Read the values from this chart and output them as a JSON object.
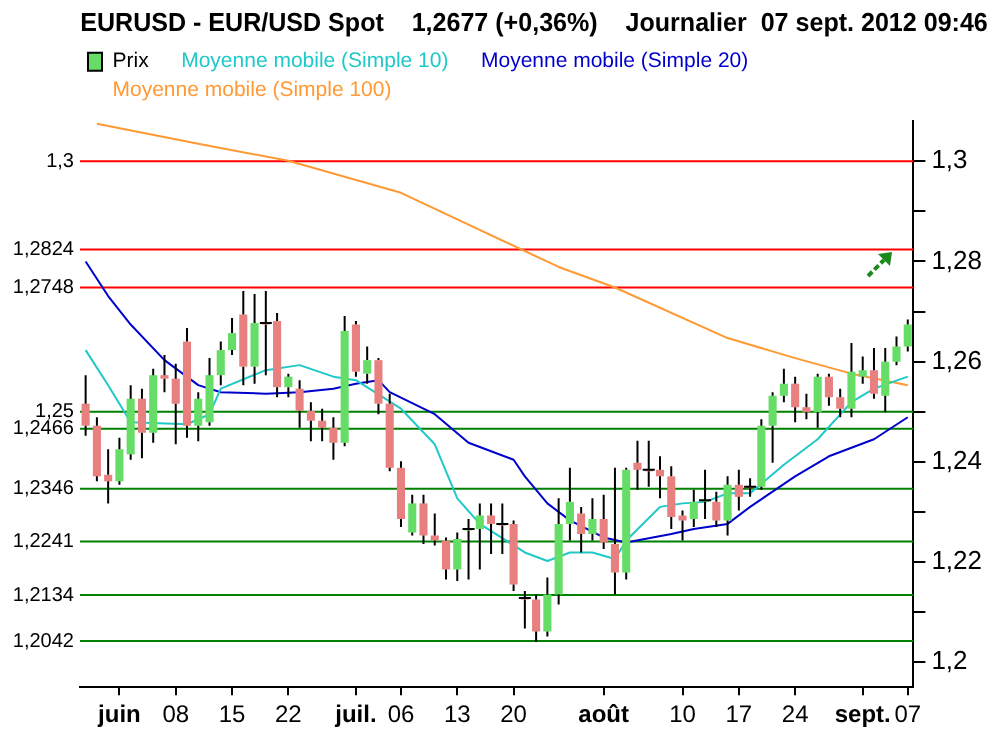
{
  "chart_data": {
    "type": "candlestick",
    "title": "EURUSD - EUR/USD Spot    1,2677 (+0,36%)    Journalier  07 sept. 2012 09:46",
    "categories": [
      null,
      null,
      null,
      "juin",
      null,
      null,
      null,
      null,
      "08",
      null,
      null,
      null,
      null,
      "15",
      null,
      null,
      null,
      null,
      "22",
      null,
      null,
      null,
      null,
      null,
      "juil.",
      null,
      null,
      null,
      "06",
      null,
      null,
      null,
      null,
      "13",
      null,
      null,
      null,
      null,
      "20",
      null,
      null,
      null,
      null,
      null,
      null,
      null,
      "août",
      null,
      null,
      null,
      null,
      null,
      null,
      "10",
      null,
      null,
      null,
      null,
      "17",
      null,
      null,
      null,
      null,
      "24",
      null,
      null,
      null,
      null,
      null,
      "sept.",
      null,
      null,
      null,
      "07"
    ],
    "series": [
      {
        "name": "Prix",
        "type": "candlestick",
        "color": "#000000",
        "ohlc": [
          [
            1.2516,
            1.2573,
            1.2452,
            1.2472
          ],
          [
            1.2472,
            1.2489,
            1.2361,
            1.2371
          ],
          [
            1.2374,
            1.2425,
            1.2317,
            1.2361
          ],
          [
            1.2361,
            1.2448,
            1.2354,
            1.2425
          ],
          [
            1.2415,
            1.2553,
            1.2404,
            1.2526
          ],
          [
            1.2526,
            1.2546,
            1.2407,
            1.2458
          ],
          [
            1.2458,
            1.2586,
            1.2438,
            1.2573
          ],
          [
            1.2573,
            1.2613,
            1.2539,
            1.2566
          ],
          [
            1.2566,
            1.2596,
            1.2435,
            1.2516
          ],
          [
            1.264,
            1.2667,
            1.2448,
            1.2472
          ],
          [
            1.2472,
            1.2539,
            1.2441,
            1.2526
          ],
          [
            1.2479,
            1.2607,
            1.2472,
            1.2573
          ],
          [
            1.2573,
            1.264,
            1.2553,
            1.2623
          ],
          [
            1.2623,
            1.2687,
            1.2613,
            1.2657
          ],
          [
            1.2694,
            1.2741,
            1.2553,
            1.259
          ],
          [
            1.259,
            1.2735,
            1.2556,
            1.2677
          ],
          [
            1.2677,
            1.2741,
            1.2573,
            1.2674
          ],
          [
            1.2681,
            1.2697,
            1.2529,
            1.2549
          ],
          [
            1.2549,
            1.2576,
            1.2529,
            1.257
          ],
          [
            1.2546,
            1.2563,
            1.2468,
            1.2502
          ],
          [
            1.2502,
            1.2519,
            1.2441,
            1.2482
          ],
          [
            1.2482,
            1.2506,
            1.2441,
            1.2468
          ],
          [
            1.2468,
            1.2489,
            1.2404,
            1.2438
          ],
          [
            1.2438,
            1.2691,
            1.2431,
            1.2661
          ],
          [
            1.2674,
            1.2681,
            1.257,
            1.258
          ],
          [
            1.2576,
            1.263,
            1.2556,
            1.2603
          ],
          [
            1.2603,
            1.2607,
            1.2495,
            1.2516
          ],
          [
            1.2516,
            1.2536,
            1.2381,
            1.2388
          ],
          [
            1.2388,
            1.2401,
            1.227,
            1.2286
          ],
          [
            1.2259,
            1.2334,
            1.2253,
            1.2317
          ],
          [
            1.2317,
            1.2334,
            1.2236,
            1.2253
          ],
          [
            1.2253,
            1.2297,
            1.2233,
            1.2243
          ],
          [
            1.2243,
            1.2249,
            1.2165,
            1.2185
          ],
          [
            1.2185,
            1.2259,
            1.2162,
            1.2246
          ],
          [
            1.2263,
            1.2286,
            1.2165,
            1.2266
          ],
          [
            1.2266,
            1.2317,
            1.2185,
            1.2293
          ],
          [
            1.2293,
            1.2317,
            1.2216,
            1.2276
          ],
          [
            1.2276,
            1.2317,
            1.2216,
            1.2273
          ],
          [
            1.2276,
            1.2283,
            1.2142,
            1.2155
          ],
          [
            1.2128,
            1.2142,
            1.2067,
            1.2125
          ],
          [
            1.2125,
            1.2135,
            1.204,
            1.2061
          ],
          [
            1.2061,
            1.2169,
            1.2051,
            1.2135
          ],
          [
            1.2135,
            1.2327,
            1.2115,
            1.2276
          ],
          [
            1.2276,
            1.2388,
            1.2243,
            1.232
          ],
          [
            1.2297,
            1.231,
            1.2219,
            1.2256
          ],
          [
            1.2256,
            1.2327,
            1.2243,
            1.2286
          ],
          [
            1.2286,
            1.2334,
            1.2226,
            1.2239
          ],
          [
            1.2236,
            1.2388,
            1.2135,
            1.2179
          ],
          [
            1.2179,
            1.2388,
            1.2165,
            1.2384
          ],
          [
            1.2398,
            1.2442,
            1.2344,
            1.2384
          ],
          [
            1.2384,
            1.2442,
            1.235,
            1.2381
          ],
          [
            1.2384,
            1.2411,
            1.2327,
            1.2371
          ],
          [
            1.2371,
            1.2391,
            1.2266,
            1.229
          ],
          [
            1.2293,
            1.2303,
            1.2243,
            1.2283
          ],
          [
            1.2286,
            1.2344,
            1.227,
            1.232
          ],
          [
            1.232,
            1.2384,
            1.2286,
            1.2323
          ],
          [
            1.232,
            1.234,
            1.227,
            1.2283
          ],
          [
            1.2283,
            1.2371,
            1.2253,
            1.2354
          ],
          [
            1.2354,
            1.2384,
            1.2303,
            1.233
          ],
          [
            1.235,
            1.2367,
            1.233,
            1.2347
          ],
          [
            1.235,
            1.2485,
            1.2344,
            1.2472
          ],
          [
            1.2472,
            1.2539,
            1.2398,
            1.2532
          ],
          [
            1.2532,
            1.2586,
            1.2519,
            1.2556
          ],
          [
            1.2556,
            1.257,
            1.2479,
            1.2509
          ],
          [
            1.2509,
            1.2536,
            1.2485,
            1.2499
          ],
          [
            1.2499,
            1.2576,
            1.2468,
            1.257
          ],
          [
            1.257,
            1.2576,
            1.2512,
            1.2529
          ],
          [
            1.2529,
            1.2546,
            1.2489,
            1.2506
          ],
          [
            1.2506,
            1.2637,
            1.2489,
            1.258
          ],
          [
            1.257,
            1.261,
            1.2556,
            1.2583
          ],
          [
            1.2583,
            1.2627,
            1.2526,
            1.2536
          ],
          [
            1.2532,
            1.2627,
            1.2499,
            1.26
          ],
          [
            1.26,
            1.265,
            1.2593,
            1.263
          ],
          [
            1.263,
            1.2684,
            1.262,
            1.2674
          ]
        ],
        "colors": [
          "#e88080",
          "#e88080",
          "#e88080",
          "#66dd66",
          "#66dd66",
          "#e88080",
          "#66dd66",
          "#e88080",
          "#e88080",
          "#e88080",
          "#66dd66",
          "#66dd66",
          "#66dd66",
          "#66dd66",
          "#e88080",
          "#66dd66",
          "#e88080",
          "#e88080",
          "#66dd66",
          "#e88080",
          "#e88080",
          "#e88080",
          "#e88080",
          "#66dd66",
          "#e88080",
          "#66dd66",
          "#e88080",
          "#e88080",
          "#e88080",
          "#66dd66",
          "#e88080",
          "#e88080",
          "#e88080",
          "#66dd66",
          "#66dd66",
          "#66dd66",
          "#e88080",
          "#e88080",
          "#e88080",
          "#e88080",
          "#e88080",
          "#66dd66",
          "#66dd66",
          "#66dd66",
          "#e88080",
          "#66dd66",
          "#e88080",
          "#e88080",
          "#66dd66",
          "#e88080",
          "#e88080",
          "#e88080",
          "#e88080",
          "#e88080",
          "#66dd66",
          "#66dd66",
          "#e88080",
          "#66dd66",
          "#e88080",
          "#e88080",
          "#66dd66",
          "#66dd66",
          "#66dd66",
          "#e88080",
          "#e88080",
          "#66dd66",
          "#e88080",
          "#e88080",
          "#66dd66",
          "#66dd66",
          "#e88080",
          "#66dd66",
          "#66dd66",
          "#66dd66"
        ]
      },
      {
        "name": "Moyenne mobile (Simple 10)",
        "type": "line",
        "color": "#20c8c8",
        "values": [
          1.2623,
          null,
          1.2553,
          null,
          1.2479,
          null,
          null,
          null,
          null,
          1.2475,
          null,
          1.2495,
          1.2546,
          null,
          null,
          null,
          1.2583,
          null,
          null,
          1.2593,
          null,
          null,
          1.257,
          null,
          1.2563,
          null,
          null,
          null,
          1.2506,
          null,
          null,
          1.2435,
          null,
          1.2327,
          null,
          1.2276,
          null,
          null,
          null,
          1.2219,
          null,
          1.2202,
          null,
          1.2219,
          null,
          1.2219,
          null,
          1.2206,
          1.2243,
          null,
          null,
          1.231,
          null,
          1.2317,
          null,
          1.232,
          null,
          1.2337,
          null,
          1.2337,
          null,
          null,
          1.2394,
          null,
          null,
          1.2445,
          null,
          null,
          1.2519,
          null,
          1.2546,
          null,
          null,
          1.257
        ]
      },
      {
        "name": "Moyenne mobile (Simple 20)",
        "type": "line",
        "color": "#0000cc",
        "values": [
          1.28,
          null,
          1.2731,
          null,
          1.2674,
          null,
          null,
          1.2603,
          null,
          null,
          1.2553,
          null,
          1.2539,
          null,
          null,
          null,
          1.2536,
          null,
          null,
          1.2539,
          null,
          null,
          1.2546,
          null,
          1.2556,
          null,
          1.2563,
          1.2539,
          null,
          null,
          null,
          1.2495,
          null,
          null,
          1.2438,
          null,
          null,
          null,
          1.2404,
          1.2371,
          null,
          1.2317,
          null,
          1.2283,
          null,
          null,
          1.2249,
          null,
          1.2239,
          null,
          null,
          null,
          1.2256,
          null,
          1.2266,
          null,
          null,
          1.2276,
          null,
          1.231,
          null,
          null,
          null,
          1.2371,
          null,
          null,
          1.2411,
          null,
          null,
          null,
          1.2445,
          null,
          null,
          1.2489
        ]
      },
      {
        "name": "Moyenne mobile (Simple 100)",
        "type": "line",
        "color": "#ff9933",
        "values": [
          null,
          1.3075,
          null,
          null,
          null,
          null,
          null,
          null,
          null,
          null,
          1.3035,
          null,
          null,
          null,
          null,
          null,
          null,
          null,
          1.3001,
          null,
          null,
          null,
          null,
          null,
          null,
          null,
          null,
          null,
          1.2937,
          null,
          null,
          null,
          null,
          null,
          null,
          null,
          null,
          null,
          null,
          null,
          null,
          null,
          1.2789,
          null,
          null,
          null,
          null,
          1.2748,
          null,
          null,
          null,
          null,
          null,
          null,
          null,
          null,
          null,
          1.2647,
          null,
          null,
          null,
          null,
          null,
          1.2607,
          null,
          null,
          null,
          null,
          1.2576,
          null,
          null,
          null,
          null,
          1.2553
        ]
      }
    ],
    "ylim": [
      1.195,
      1.308
    ],
    "yticks": [
      {
        "value": 1.2,
        "label": "1,2"
      },
      {
        "value": 1.21,
        "label": null
      },
      {
        "value": 1.22,
        "label": "1,22"
      },
      {
        "value": 1.23,
        "label": null
      },
      {
        "value": 1.24,
        "label": "1,24"
      },
      {
        "value": 1.25,
        "label": null
      },
      {
        "value": 1.26,
        "label": "1,26"
      },
      {
        "value": 1.27,
        "label": null
      },
      {
        "value": 1.28,
        "label": "1,28"
      },
      {
        "value": 1.29,
        "label": null
      },
      {
        "value": 1.3,
        "label": "1,3"
      }
    ],
    "ref_lines": [
      {
        "axis": "y",
        "value": 1.3,
        "label": "1,3",
        "color": "#ff0000"
      },
      {
        "axis": "y",
        "value": 1.2824,
        "label": "1,2824",
        "color": "#ff0000"
      },
      {
        "axis": "y",
        "value": 1.2748,
        "label": "1,2748",
        "color": "#ff0000"
      },
      {
        "axis": "y",
        "value": 1.25,
        "label": "1,25",
        "color": "#008000"
      },
      {
        "axis": "y",
        "value": 1.2466,
        "label": "1,2466",
        "color": "#008000"
      },
      {
        "axis": "y",
        "value": 1.2346,
        "label": "1,2346",
        "color": "#008000"
      },
      {
        "axis": "y",
        "value": 1.2241,
        "label": "1,2241",
        "color": "#008000"
      },
      {
        "axis": "y",
        "value": 1.2134,
        "label": "1,2134",
        "color": "#008000"
      },
      {
        "axis": "y",
        "value": 1.2042,
        "label": "1,2042",
        "color": "#008000"
      }
    ],
    "legend": "top left",
    "line_style": "solid"
  }
}
